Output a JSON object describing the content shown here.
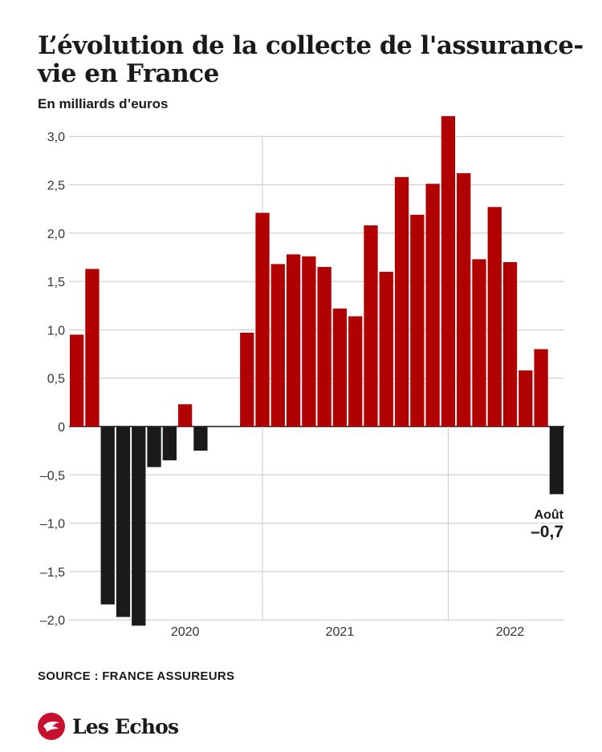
{
  "header": {
    "title": "L’évolution de la collecte de l'assurance-vie en France",
    "subtitle": "En milliards d’euros"
  },
  "footer": {
    "source": "SOURCE : FRANCE ASSUREURS",
    "brand": "Les Echos"
  },
  "colors": {
    "positive": "#b00000",
    "negative": "#1a1a1a",
    "grid": "#c8c8c8",
    "brand": "#c8102e"
  },
  "chart_data": {
    "type": "bar",
    "ylabel": "En milliards d’euros",
    "ylim": [
      -2.0,
      3.0
    ],
    "yticks": [
      3.0,
      2.5,
      2.0,
      1.5,
      1.0,
      0.5,
      0,
      -0.5,
      -1.0,
      -1.5,
      -2.0
    ],
    "ytick_labels": [
      "3,0",
      "2,5",
      "2,0",
      "1,5",
      "1,0",
      "0,5",
      "0",
      "–0,5",
      "–1,0",
      "–1,5",
      "–2,0"
    ],
    "x_year_labels": [
      {
        "label": "2020",
        "index": 7
      },
      {
        "label": "2021",
        "index": 17
      },
      {
        "label": "2022",
        "index": 28
      }
    ],
    "year_separators": [
      12,
      24
    ],
    "values": [
      0.95,
      1.63,
      -1.84,
      -1.97,
      -2.06,
      -0.42,
      -0.35,
      0.23,
      -0.25,
      null,
      null,
      0.97,
      2.21,
      1.68,
      1.78,
      1.76,
      1.65,
      1.22,
      1.14,
      2.08,
      1.6,
      2.58,
      2.19,
      2.51,
      3.21,
      2.62,
      1.73,
      2.27,
      1.7,
      0.58,
      0.8,
      -0.7
    ],
    "grid": true,
    "annotation": {
      "label": "Août",
      "value": "–0,7",
      "index": 31
    }
  }
}
